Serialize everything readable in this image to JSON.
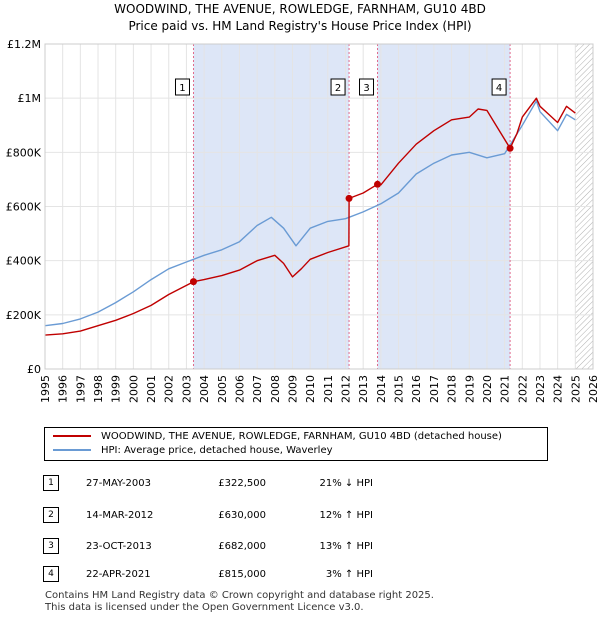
{
  "title": "WOODWIND, THE AVENUE, ROWLEDGE, FARNHAM, GU10 4BD",
  "subtitle": "Price paid vs. HM Land Registry's House Price Index (HPI)",
  "colors": {
    "property": "#c00000",
    "hpi": "#6a9bd4",
    "shade": "#dde6f7",
    "marker_line": "#e06a8c"
  },
  "chart_data": {
    "type": "line",
    "title": "WOODWIND, THE AVENUE, ROWLEDGE, FARNHAM, GU10 4BD",
    "ylim": [
      0,
      1200000
    ],
    "xlim": [
      1995,
      2026
    ],
    "y_ticks": [
      0,
      200000,
      400000,
      600000,
      800000,
      1000000,
      1200000
    ],
    "y_tick_labels": [
      "£0",
      "£200K",
      "£400K",
      "£600K",
      "£800K",
      "£1M",
      "£1.2M"
    ],
    "x_ticks": [
      1995,
      1996,
      1997,
      1998,
      1999,
      2000,
      2001,
      2002,
      2003,
      2004,
      2005,
      2006,
      2007,
      2008,
      2009,
      2010,
      2011,
      2012,
      2013,
      2014,
      2015,
      2016,
      2017,
      2018,
      2019,
      2020,
      2021,
      2022,
      2023,
      2024,
      2025,
      2026
    ],
    "shaded_ranges": [
      [
        2003.4,
        2012.2
      ],
      [
        2013.81,
        2021.31
      ]
    ],
    "hatch_from": 2025.0,
    "series": [
      {
        "name": "WOODWIND, THE AVENUE, ROWLEDGE, FARNHAM, GU10 4BD (detached house)",
        "x": [
          1995,
          1996,
          1997,
          1998,
          1999,
          2000,
          2001,
          2002,
          2003.4,
          2004,
          2005,
          2006,
          2007,
          2008,
          2008.5,
          2009,
          2009.5,
          2010,
          2011,
          2012.19,
          2012.2,
          2013,
          2013.81,
          2014,
          2015,
          2016,
          2017,
          2018,
          2019,
          2019.5,
          2020,
          2021.31,
          2021.7,
          2022,
          2022.8,
          2023,
          2023.5,
          2024,
          2024.5,
          2025
        ],
        "values": [
          125000,
          130000,
          140000,
          160000,
          180000,
          205000,
          235000,
          275000,
          322500,
          330000,
          345000,
          365000,
          400000,
          420000,
          390000,
          340000,
          370000,
          405000,
          430000,
          455000,
          630000,
          650000,
          682000,
          680000,
          760000,
          830000,
          880000,
          920000,
          930000,
          960000,
          955000,
          815000,
          870000,
          930000,
          1000000,
          970000,
          940000,
          910000,
          970000,
          945000
        ]
      },
      {
        "name": "HPI: Average price, detached house, Waverley",
        "x": [
          1995,
          1996,
          1997,
          1998,
          1999,
          2000,
          2001,
          2002,
          2003,
          2004,
          2005,
          2006,
          2007,
          2007.8,
          2008.5,
          2009.2,
          2010,
          2011,
          2012,
          2013,
          2014,
          2015,
          2016,
          2017,
          2018,
          2019,
          2020,
          2021,
          2022,
          2022.8,
          2023,
          2024,
          2024.5,
          2025
        ],
        "values": [
          160000,
          168000,
          185000,
          210000,
          245000,
          285000,
          330000,
          370000,
          395000,
          420000,
          440000,
          470000,
          530000,
          560000,
          520000,
          455000,
          520000,
          545000,
          555000,
          580000,
          610000,
          650000,
          720000,
          760000,
          790000,
          800000,
          780000,
          795000,
          900000,
          990000,
          950000,
          880000,
          940000,
          920000
        ]
      }
    ],
    "transactions": [
      {
        "id": "1",
        "x": 2003.4,
        "price": 322500,
        "date": "27-MAY-2003",
        "price_label": "£322,500",
        "hpi_label": "21% ↓ HPI"
      },
      {
        "id": "2",
        "x": 2012.2,
        "price": 630000,
        "date": "14-MAR-2012",
        "price_label": "£630,000",
        "hpi_label": "12% ↑ HPI"
      },
      {
        "id": "3",
        "x": 2013.81,
        "price": 682000,
        "date": "23-OCT-2013",
        "price_label": "£682,000",
        "hpi_label": "13% ↑ HPI"
      },
      {
        "id": "4",
        "x": 2021.31,
        "price": 815000,
        "date": "22-APR-2021",
        "price_label": "£815,000",
        "hpi_label": "3% ↑ HPI"
      }
    ]
  },
  "legend": {
    "property": "WOODWIND, THE AVENUE, ROWLEDGE, FARNHAM, GU10 4BD (detached house)",
    "hpi": "HPI: Average price, detached house, Waverley"
  },
  "footer": {
    "line1": "Contains HM Land Registry data © Crown copyright and database right 2025.",
    "line2": "This data is licensed under the Open Government Licence v3.0."
  }
}
